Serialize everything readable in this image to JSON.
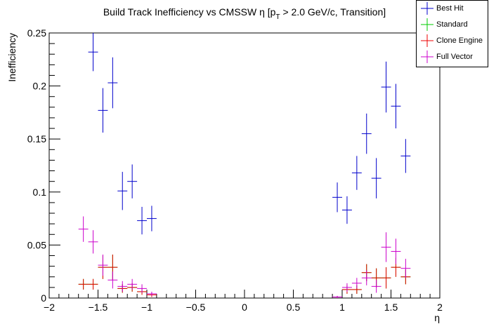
{
  "chart_data": {
    "type": "scatter",
    "title": "Build Track Inefficiency vs CMSSW η [p",
    "title_sub": "T",
    "title_tail": " > 2.0 GeV/c, Transition]",
    "xlabel": "η",
    "ylabel": "Inefficiency",
    "xlim": [
      -2,
      2
    ],
    "ylim": [
      0,
      0.25
    ],
    "x_ticks": [
      "−2",
      "−1.5",
      "−1",
      "−0.5",
      "0",
      "0.5",
      "1",
      "1.5",
      "2"
    ],
    "y_ticks": [
      "0",
      "0.05",
      "0.1",
      "0.15",
      "0.2",
      "0.25"
    ],
    "legend_position": "top-right",
    "series": [
      {
        "name": "Best Hit",
        "color": "#0000cc",
        "points": [
          {
            "x": -1.55,
            "y": 0.232,
            "err": 0.018
          },
          {
            "x": -1.45,
            "y": 0.177,
            "err": 0.021
          },
          {
            "x": -1.35,
            "y": 0.203,
            "err": 0.024
          },
          {
            "x": -1.25,
            "y": 0.101,
            "err": 0.018
          },
          {
            "x": -1.15,
            "y": 0.11,
            "err": 0.016
          },
          {
            "x": -1.05,
            "y": 0.073,
            "err": 0.013
          },
          {
            "x": -0.95,
            "y": 0.075,
            "err": 0.012
          },
          {
            "x": 0.95,
            "y": 0.095,
            "err": 0.014
          },
          {
            "x": 1.05,
            "y": 0.083,
            "err": 0.013
          },
          {
            "x": 1.15,
            "y": 0.118,
            "err": 0.016
          },
          {
            "x": 1.25,
            "y": 0.155,
            "err": 0.019
          },
          {
            "x": 1.35,
            "y": 0.113,
            "err": 0.019
          },
          {
            "x": 1.45,
            "y": 0.199,
            "err": 0.024
          },
          {
            "x": 1.55,
            "y": 0.181,
            "err": 0.021
          },
          {
            "x": 1.65,
            "y": 0.134,
            "err": 0.016
          }
        ]
      },
      {
        "name": "Standard",
        "color": "#00cc00",
        "points": [
          {
            "x": -1.65,
            "y": 0.013,
            "err": 0.005
          },
          {
            "x": -1.55,
            "y": 0.013,
            "err": 0.005
          },
          {
            "x": -1.45,
            "y": 0.029,
            "err": 0.011
          },
          {
            "x": -1.35,
            "y": 0.029,
            "err": 0.012
          },
          {
            "x": -1.25,
            "y": 0.009,
            "err": 0.004
          },
          {
            "x": -1.15,
            "y": 0.01,
            "err": 0.004
          },
          {
            "x": -1.05,
            "y": 0.006,
            "err": 0.003
          },
          {
            "x": -0.95,
            "y": 0.003,
            "err": 0.002
          },
          {
            "x": 0.95,
            "y": 0.001,
            "err": 0.001
          },
          {
            "x": 1.05,
            "y": 0.008,
            "err": 0.004
          },
          {
            "x": 1.15,
            "y": 0.008,
            "err": 0.004
          },
          {
            "x": 1.25,
            "y": 0.024,
            "err": 0.008
          },
          {
            "x": 1.35,
            "y": 0.019,
            "err": 0.009
          },
          {
            "x": 1.45,
            "y": 0.019,
            "err": 0.01
          },
          {
            "x": 1.55,
            "y": 0.029,
            "err": 0.009
          },
          {
            "x": 1.65,
            "y": 0.02,
            "err": 0.007
          }
        ]
      },
      {
        "name": "Clone Engine",
        "color": "#ee0000",
        "points": [
          {
            "x": -1.65,
            "y": 0.013,
            "err": 0.005
          },
          {
            "x": -1.55,
            "y": 0.013,
            "err": 0.005
          },
          {
            "x": -1.45,
            "y": 0.029,
            "err": 0.011
          },
          {
            "x": -1.35,
            "y": 0.029,
            "err": 0.012
          },
          {
            "x": -1.25,
            "y": 0.009,
            "err": 0.004
          },
          {
            "x": -1.15,
            "y": 0.01,
            "err": 0.004
          },
          {
            "x": -1.05,
            "y": 0.006,
            "err": 0.003
          },
          {
            "x": -0.95,
            "y": 0.003,
            "err": 0.002
          },
          {
            "x": 0.95,
            "y": 0.001,
            "err": 0.001
          },
          {
            "x": 1.05,
            "y": 0.008,
            "err": 0.004
          },
          {
            "x": 1.15,
            "y": 0.008,
            "err": 0.004
          },
          {
            "x": 1.25,
            "y": 0.024,
            "err": 0.008
          },
          {
            "x": 1.35,
            "y": 0.019,
            "err": 0.009
          },
          {
            "x": 1.45,
            "y": 0.019,
            "err": 0.01
          },
          {
            "x": 1.55,
            "y": 0.029,
            "err": 0.009
          },
          {
            "x": 1.65,
            "y": 0.02,
            "err": 0.007
          }
        ]
      },
      {
        "name": "Full Vector",
        "color": "#cc00cc",
        "points": [
          {
            "x": -1.65,
            "y": 0.065,
            "err": 0.012
          },
          {
            "x": -1.55,
            "y": 0.053,
            "err": 0.011
          },
          {
            "x": -1.45,
            "y": 0.031,
            "err": 0.01
          },
          {
            "x": -1.35,
            "y": 0.017,
            "err": 0.008
          },
          {
            "x": -1.25,
            "y": 0.011,
            "err": 0.005
          },
          {
            "x": -1.15,
            "y": 0.013,
            "err": 0.005
          },
          {
            "x": -1.05,
            "y": 0.009,
            "err": 0.004
          },
          {
            "x": -0.95,
            "y": 0.004,
            "err": 0.002
          },
          {
            "x": 0.95,
            "y": 0.001,
            "err": 0.001
          },
          {
            "x": 1.05,
            "y": 0.01,
            "err": 0.004
          },
          {
            "x": 1.15,
            "y": 0.014,
            "err": 0.005
          },
          {
            "x": 1.25,
            "y": 0.019,
            "err": 0.007
          },
          {
            "x": 1.35,
            "y": 0.011,
            "err": 0.006
          },
          {
            "x": 1.45,
            "y": 0.048,
            "err": 0.014
          },
          {
            "x": 1.55,
            "y": 0.044,
            "err": 0.012
          },
          {
            "x": 1.65,
            "y": 0.028,
            "err": 0.009
          }
        ]
      }
    ]
  }
}
